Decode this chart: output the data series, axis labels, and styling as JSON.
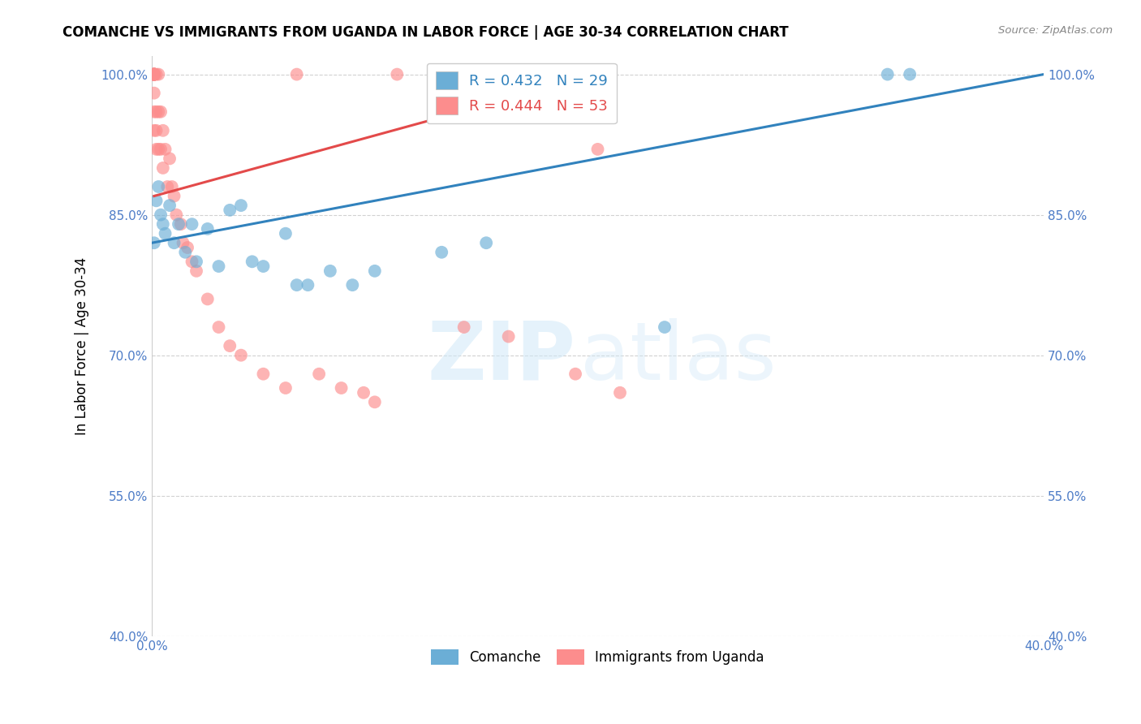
{
  "title": "COMANCHE VS IMMIGRANTS FROM UGANDA IN LABOR FORCE | AGE 30-34 CORRELATION CHART",
  "source": "Source: ZipAtlas.com",
  "ylabel": "In Labor Force | Age 30-34",
  "legend_label1": "Comanche",
  "legend_label2": "Immigrants from Uganda",
  "R1": 0.432,
  "N1": 29,
  "R2": 0.444,
  "N2": 53,
  "xlim": [
    0.0,
    0.4
  ],
  "ylim": [
    0.4,
    1.02
  ],
  "yticks": [
    0.4,
    0.55,
    0.7,
    0.85,
    1.0
  ],
  "ytick_labels": [
    "40.0%",
    "55.0%",
    "70.0%",
    "85.0%",
    "100.0%"
  ],
  "xticks": [
    0.0,
    0.05,
    0.1,
    0.15,
    0.2,
    0.25,
    0.3,
    0.35,
    0.4
  ],
  "xtick_labels": [
    "0.0%",
    "",
    "",
    "",
    "",
    "",
    "",
    "",
    "40.0%"
  ],
  "color_blue": "#6baed6",
  "color_pink": "#fc8d8d",
  "color_blue_line": "#3182bd",
  "color_pink_line": "#e34a4a",
  "watermark_zip": "ZIP",
  "watermark_atlas": "atlas",
  "blue_points_x": [
    0.001,
    0.002,
    0.003,
    0.004,
    0.005,
    0.006,
    0.008,
    0.01,
    0.012,
    0.015,
    0.018,
    0.02,
    0.025,
    0.03,
    0.035,
    0.04,
    0.045,
    0.05,
    0.06,
    0.065,
    0.07,
    0.08,
    0.09,
    0.1,
    0.13,
    0.15,
    0.23,
    0.33,
    0.34
  ],
  "blue_points_y": [
    0.82,
    0.865,
    0.88,
    0.85,
    0.84,
    0.83,
    0.86,
    0.82,
    0.84,
    0.81,
    0.84,
    0.8,
    0.835,
    0.795,
    0.855,
    0.86,
    0.8,
    0.795,
    0.83,
    0.775,
    0.775,
    0.79,
    0.775,
    0.79,
    0.81,
    0.82,
    0.73,
    1.0,
    1.0
  ],
  "pink_points_x": [
    0.001,
    0.001,
    0.001,
    0.001,
    0.001,
    0.001,
    0.001,
    0.001,
    0.001,
    0.001,
    0.001,
    0.001,
    0.001,
    0.001,
    0.002,
    0.002,
    0.002,
    0.002,
    0.003,
    0.003,
    0.003,
    0.004,
    0.004,
    0.005,
    0.005,
    0.006,
    0.007,
    0.008,
    0.009,
    0.01,
    0.011,
    0.013,
    0.014,
    0.016,
    0.018,
    0.02,
    0.025,
    0.03,
    0.035,
    0.04,
    0.05,
    0.06,
    0.065,
    0.075,
    0.085,
    0.095,
    0.1,
    0.11,
    0.14,
    0.16,
    0.19,
    0.2,
    0.21
  ],
  "pink_points_y": [
    1.0,
    1.0,
    1.0,
    1.0,
    1.0,
    1.0,
    1.0,
    1.0,
    1.0,
    1.0,
    1.0,
    0.98,
    0.96,
    0.94,
    1.0,
    0.96,
    0.94,
    0.92,
    1.0,
    0.96,
    0.92,
    0.96,
    0.92,
    0.94,
    0.9,
    0.92,
    0.88,
    0.91,
    0.88,
    0.87,
    0.85,
    0.84,
    0.82,
    0.815,
    0.8,
    0.79,
    0.76,
    0.73,
    0.71,
    0.7,
    0.68,
    0.665,
    1.0,
    0.68,
    0.665,
    0.66,
    0.65,
    1.0,
    0.73,
    0.72,
    0.68,
    0.92,
    0.66
  ],
  "blue_line_x": [
    0.0,
    0.4
  ],
  "blue_line_y": [
    0.82,
    1.0
  ],
  "pink_line_x": [
    0.001,
    0.2
  ],
  "pink_line_y": [
    0.87,
    1.0
  ]
}
